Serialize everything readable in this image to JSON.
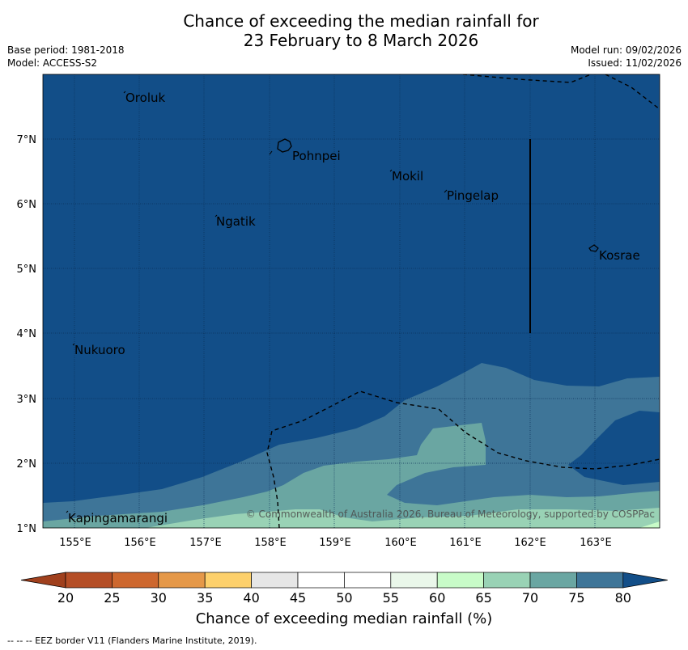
{
  "title": {
    "line1": "Chance of exceeding the median rainfall for",
    "line2": "23 February to 8 March 2026"
  },
  "meta": {
    "base_period": "Base period: 1981-2018",
    "model": "Model: ACCESS-S2",
    "model_run": "Model run: 09/02/2026",
    "issued": "Issued: 11/02/2026"
  },
  "map": {
    "lon_labels": [
      "155°E",
      "156°E",
      "157°E",
      "158°E",
      "159°E",
      "160°E",
      "161°E",
      "162°E",
      "163°E"
    ],
    "lat_labels": [
      "7°N",
      "6°N",
      "5°N",
      "4°N",
      "3°N",
      "2°N",
      "1°N"
    ],
    "places": [
      "Oroluk",
      "Pohnpei",
      "Mokil",
      "Pingelap",
      "Ngatik",
      "Kosrae",
      "Nukuoro",
      "Kapingamarangi"
    ],
    "copyright": "© Commonwealth of Australia 2026, Bureau of Meteorology, supported by COSPPac"
  },
  "colorbar": {
    "ticks": [
      "20",
      "25",
      "30",
      "35",
      "40",
      "45",
      "50",
      "55",
      "60",
      "65",
      "70",
      "75",
      "80"
    ],
    "colors": [
      "#a0401d",
      "#b54e26",
      "#cd672e",
      "#e59848",
      "#fdd06b",
      "#e6e6e6",
      "#ffffff",
      "#ffffff",
      "#eaf7ea",
      "#c8fbc8",
      "#99d2b5",
      "#6aa6a2",
      "#3e7598",
      "#124e88"
    ],
    "label": "Chance of exceeding median rainfall (%)"
  },
  "legend_note": "--  --  -- EEZ border V11 (Flanders Marine Institute, 2019)."
}
